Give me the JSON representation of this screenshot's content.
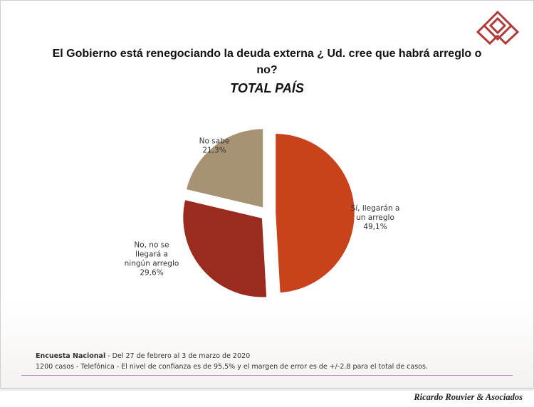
{
  "title": "El Gobierno está renegociando la deuda externa ¿ Ud. cree que habrá arreglo o no?",
  "subtitle": "TOTAL PAÍS",
  "chart_data": {
    "type": "pie",
    "slices": [
      {
        "label_lines": [
          "Sí, llegarán a",
          "un arreglo",
          "49,1%"
        ],
        "value": 49.1,
        "color": "#c8421c"
      },
      {
        "label_lines": [
          "No, no se",
          "llegará a",
          "ningún arreglo",
          "29,6%"
        ],
        "value": 29.6,
        "color": "#9b2a1f"
      },
      {
        "label_lines": [
          "No sabe",
          "21,3%"
        ],
        "value": 21.3,
        "color": "#a89274"
      }
    ]
  },
  "footer": {
    "survey_name": "Encuesta Nacional",
    "survey_dates": " - Del 27 de febrero  al 3 de marzo de 2020",
    "method": "1200 casos - Telefónica  - El nivel de confianza  es de 95,5% y el margen de error es de +/-2.8 para el total  de casos."
  },
  "brand": "Ricardo Rouvier & Asociados"
}
